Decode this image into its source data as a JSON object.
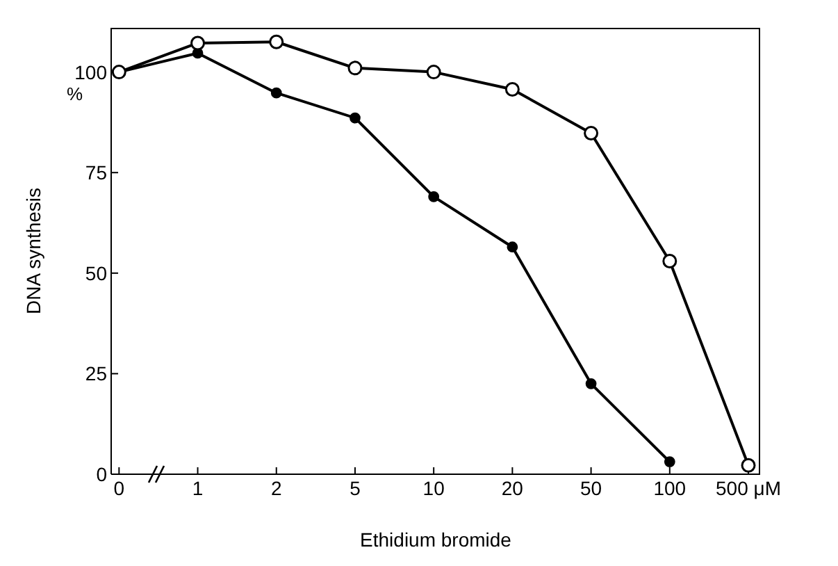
{
  "chart_data": {
    "type": "line",
    "xlabel": "Ethidium bromide",
    "ylabel": "DNA synthesis",
    "categories": [
      "0",
      "1",
      "2",
      "5",
      "10",
      "20",
      "50",
      "100",
      "500 μM"
    ],
    "series": [
      {
        "color": "#000000",
        "values": [
          100,
          107.2,
          107.5,
          101,
          100,
          95.7,
          84.8,
          53,
          2.2
        ]
      },
      {
        "color": "#000000",
        "values": [
          100,
          104.7,
          94.8,
          88.6,
          69,
          56.5,
          22.5,
          3.1,
          null
        ]
      }
    ],
    "ylim": [
      0,
      111
    ],
    "yticks": [
      0,
      25,
      50,
      75,
      100
    ],
    "marker": "circle",
    "line_style": "solid",
    "annotations": [
      "%"
    ]
  }
}
